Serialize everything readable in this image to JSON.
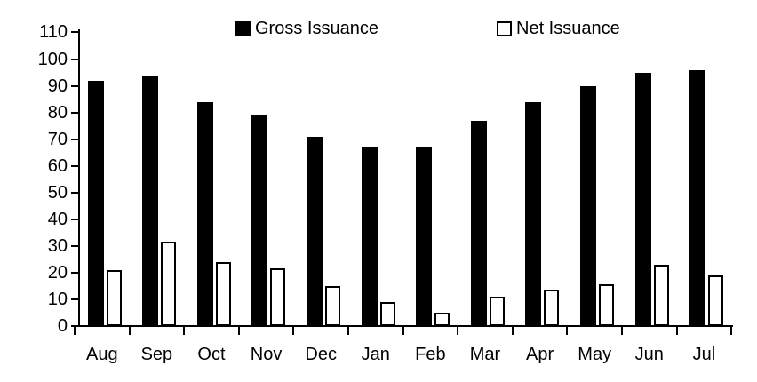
{
  "chart_data": {
    "type": "bar",
    "title": "",
    "xlabel": "",
    "ylabel": "",
    "categories": [
      "Aug",
      "Sep",
      "Oct",
      "Nov",
      "Dec",
      "Jan",
      "Feb",
      "Mar",
      "Apr",
      "May",
      "Jun",
      "Jul"
    ],
    "series": [
      {
        "name": "Gross Issuance",
        "style": "filled",
        "fill_color": "#000000",
        "values": [
          92,
          94,
          84,
          79,
          71,
          67,
          67,
          77,
          84,
          90,
          95,
          96
        ]
      },
      {
        "name": "Net Issuance",
        "style": "outlined",
        "fill_color": "#ffffff",
        "stroke_color": "#000000",
        "values": [
          21,
          31.5,
          24,
          21.5,
          15,
          9,
          5,
          11,
          13.5,
          15.5,
          23,
          19
        ]
      }
    ],
    "ylim": [
      0,
      110
    ],
    "ytick_step": 10,
    "ytick_labels": [
      "0",
      "10",
      "20",
      "30",
      "40",
      "50",
      "60",
      "70",
      "80",
      "90",
      "100",
      "110"
    ],
    "grid": false,
    "legend_position": "top"
  },
  "legend": {
    "gross_marker": "black-filled-square",
    "net_marker": "white-outlined-square"
  },
  "colors": {
    "foreground": "#000000",
    "background": "#ffffff"
  }
}
